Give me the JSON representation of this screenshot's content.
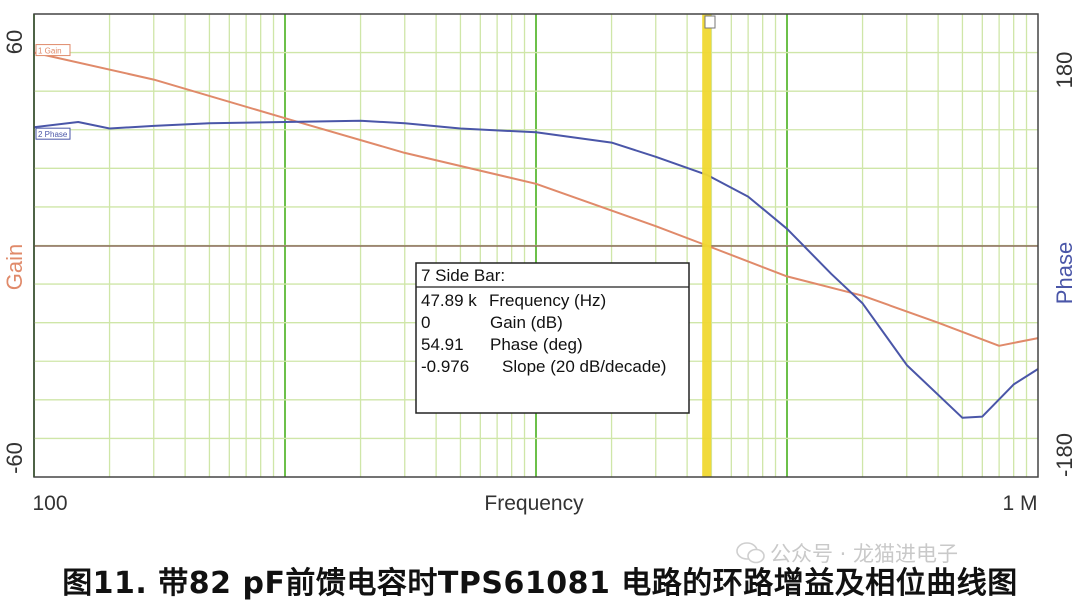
{
  "chart_data": {
    "type": "line",
    "xlabel": "Frequency",
    "y_left_label": "Gain",
    "y_right_label": "Phase",
    "x_scale": "log",
    "xlim": [
      100,
      1000000
    ],
    "x_tick_labels": [
      "100",
      "1 M"
    ],
    "y_left_lim": [
      -60,
      60
    ],
    "y_left_tick_labels": [
      "60",
      "-60"
    ],
    "y_right_lim": [
      -180,
      180
    ],
    "y_right_tick_labels": [
      "180",
      "-180"
    ],
    "grid": true,
    "cursor_x": 47890,
    "series": [
      {
        "name": "Gain",
        "axis": "left",
        "color": "#e08a6a",
        "x": [
          100,
          300,
          1000,
          3000,
          10000,
          30000,
          47890,
          100000,
          200000,
          400000,
          700000,
          1000000
        ],
        "y": [
          50,
          43,
          33,
          24,
          16,
          5,
          0,
          -8,
          -13,
          -20,
          -26,
          -24
        ]
      },
      {
        "name": "Phase",
        "axis": "right",
        "color": "#4a56a8",
        "x": [
          100,
          150,
          200,
          300,
          500,
          1000,
          2000,
          3000,
          5000,
          10000,
          20000,
          30000,
          47890,
          70000,
          100000,
          150000,
          200000,
          300000,
          500000,
          600000,
          800000,
          1000000
        ],
        "y": [
          92,
          96,
          91,
          93,
          95,
          96,
          97,
          95,
          91,
          88,
          80,
          69,
          55,
          38,
          13,
          -22,
          -45,
          -93,
          -134,
          -133,
          -108,
          -96
        ]
      }
    ],
    "series_tags": [
      "1 Gain",
      "2 Phase"
    ],
    "sidebar": {
      "title": "7 Side Bar:",
      "rows": [
        {
          "value": "47.89 k",
          "label": "Frequency (Hz)"
        },
        {
          "value": "0",
          "label": "Gain (dB)"
        },
        {
          "value": "54.91",
          "label": "Phase (deg)"
        },
        {
          "value": "-0.976",
          "label": "Slope (20 dB/decade)"
        }
      ]
    },
    "caption": "图11. 带82 pF前馈电容时TPS61081 电路的环路增益及相位曲线图"
  },
  "watermark": "公众号 · 龙猫进电子",
  "colors": {
    "plot_bg": "#ffffff",
    "minor_grid": "#cfe6a8",
    "decade_grid": "#6cc04a",
    "zero_line": "#8a6a5a",
    "cursor": "#f0d830"
  }
}
